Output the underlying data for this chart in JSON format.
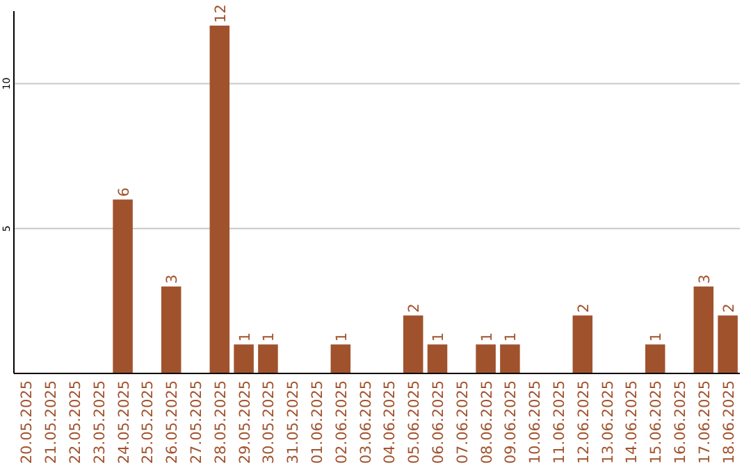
{
  "chart_data": {
    "type": "bar",
    "categories": [
      "20.05.2025",
      "21.05.2025",
      "22.05.2025",
      "23.05.2025",
      "24.05.2025",
      "25.05.2025",
      "26.05.2025",
      "27.05.2025",
      "28.05.2025",
      "29.05.2025",
      "30.05.2025",
      "31.05.2025",
      "01.06.2025",
      "02.06.2025",
      "03.06.2025",
      "04.06.2025",
      "05.06.2025",
      "06.06.2025",
      "07.06.2025",
      "08.06.2025",
      "09.06.2025",
      "10.06.2025",
      "11.06.2025",
      "12.06.2025",
      "13.06.2025",
      "14.06.2025",
      "15.06.2025",
      "16.06.2025",
      "17.06.2025",
      "18.06.2025"
    ],
    "values": [
      0,
      0,
      0,
      0,
      6,
      0,
      3,
      0,
      12,
      1,
      1,
      0,
      0,
      1,
      0,
      0,
      2,
      1,
      0,
      1,
      1,
      0,
      0,
      2,
      0,
      0,
      1,
      0,
      3,
      2
    ],
    "value_labels": [
      null,
      null,
      null,
      null,
      "6",
      null,
      "3",
      null,
      "12",
      "1",
      "1",
      null,
      null,
      "1",
      null,
      null,
      "2",
      "1",
      null,
      "1",
      "1",
      null,
      null,
      "2",
      null,
      null,
      "1",
      null,
      "3",
      "2"
    ],
    "color": "#a0522d",
    "ylim": [
      0,
      12.5
    ],
    "yticks": [
      5,
      10
    ],
    "grid": "y"
  }
}
